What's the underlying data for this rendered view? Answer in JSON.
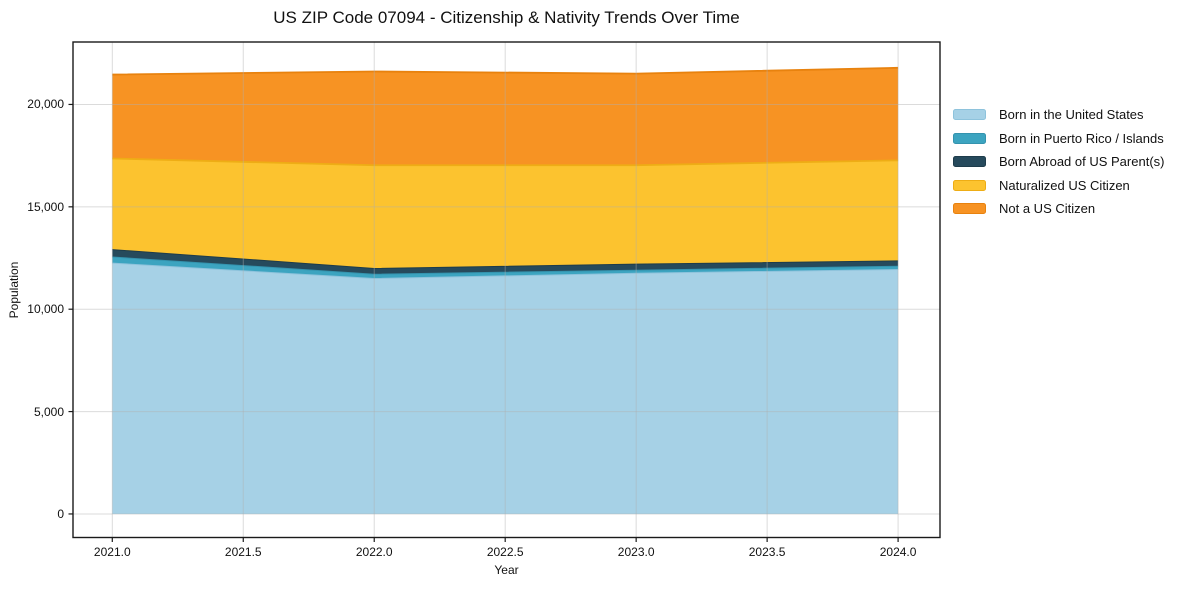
{
  "chart_data": {
    "type": "area",
    "stacked": true,
    "title": "US ZIP Code 07094 - Citizenship & Nativity Trends Over Time",
    "xlabel": "Year",
    "ylabel": "Population",
    "x": [
      2021,
      2022,
      2023,
      2024
    ],
    "series": [
      {
        "name": "Born in the United States",
        "color": "#a6d1e6",
        "edge": "#8ec3dc",
        "values": [
          12250,
          11500,
          11755,
          11940
        ]
      },
      {
        "name": "Born in Puerto Rico / Islands",
        "color": "#3ca4c0",
        "edge": "#3493ae",
        "values": [
          300,
          210,
          150,
          160
        ]
      },
      {
        "name": "Born Abroad of US Parent(s)",
        "color": "#264a5c",
        "edge": "#1e3c4b",
        "values": [
          360,
          280,
          295,
          260
        ]
      },
      {
        "name": "Naturalized US Citizen",
        "color": "#fcc32f",
        "edge": "#eead15",
        "values": [
          4450,
          5040,
          4830,
          4910
        ]
      },
      {
        "name": "Not a US Citizen",
        "color": "#f79323",
        "edge": "#e8820e",
        "values": [
          4100,
          4580,
          4475,
          4520
        ]
      }
    ],
    "totals": [
      21460,
      21610,
      21505,
      21790
    ],
    "xticks": {
      "values": [
        2021.0,
        2021.5,
        2022.0,
        2022.5,
        2023.0,
        2023.5,
        2024.0
      ],
      "labels": [
        "2021.0",
        "2021.5",
        "2022.0",
        "2022.5",
        "2023.0",
        "2023.5",
        "2024.0"
      ]
    },
    "yticks": {
      "values": [
        0,
        5000,
        10000,
        15000,
        20000
      ],
      "labels": [
        "0",
        "5,000",
        "10,000",
        "15,000",
        "20,000"
      ]
    },
    "xlim": [
      2020.85,
      2024.16
    ],
    "ylim": [
      -1150,
      23050
    ],
    "grid": true,
    "legend_position": "right-outside",
    "background": "#ffffff",
    "spine_color": "#1a1a1a",
    "grid_color": "rgba(175,175,175,0.45)"
  }
}
